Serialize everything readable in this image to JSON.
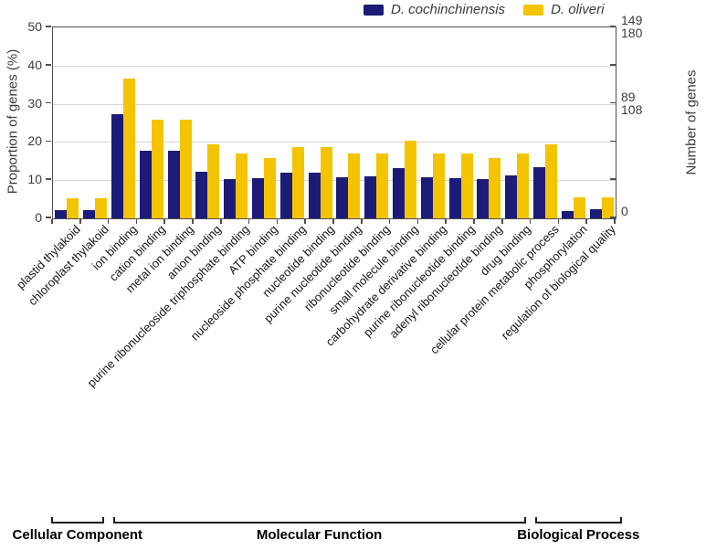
{
  "accent_colors": {
    "series1": "#1c1c78",
    "series2": "#f4c400",
    "axis": "#4f4f4f",
    "grid": "#d7d7d7"
  },
  "chart_data": {
    "type": "bar",
    "title": "",
    "ylabel_left": "Proportion of genes (%)",
    "ylabel_right": "Number of genes",
    "ylim": [
      0,
      50
    ],
    "left_ticks": [
      0,
      10,
      20,
      30,
      40,
      50
    ],
    "grid": "horizontal",
    "legend_position": "top",
    "right_axis_labels": [
      {
        "text": "149",
        "at_percent": 50,
        "series": "D. cochinchinensis"
      },
      {
        "text": "180",
        "at_percent": 50,
        "series": "D. oliveri"
      },
      {
        "text": "89",
        "at_percent": 30,
        "series": "D. cochinchinensis"
      },
      {
        "text": "108",
        "at_percent": 30,
        "series": "D. oliveri"
      },
      {
        "text": "0",
        "at_percent": 0
      }
    ],
    "categories": [
      "plastid thylakoid",
      "chloroplast thylakoid",
      "ion binding",
      "cation binding",
      "metal ion binding",
      "anion binding",
      "purine ribonucleoside triphosphate binding",
      "ATP binding",
      "nucleoside phosphate binding",
      "nucleotide binding",
      "purine nucleotide binding",
      "ribonucleotide binding",
      "small molecule binding",
      "carbohydrate derivative binding",
      "purine ribonucleotide binding",
      "adenyl ribonucleotide binding",
      "drug binding",
      "cellular protein metabolic process",
      "phosphorylation",
      "regulation of biological quality"
    ],
    "groups": [
      {
        "label": "Cellular Component",
        "start": 0,
        "end": 1
      },
      {
        "label": "Molecular Function",
        "start": 2,
        "end": 16
      },
      {
        "label": "Biological Process",
        "start": 17,
        "end": 19
      }
    ],
    "series": [
      {
        "name": "D. cochinchinensis",
        "color": "#1c1c78",
        "values": [
          2.2,
          2.2,
          27.3,
          17.6,
          17.6,
          12.2,
          10.4,
          10.5,
          11.9,
          11.9,
          10.8,
          10.9,
          13.1,
          10.8,
          10.5,
          10.4,
          11.2,
          13.3,
          1.8,
          2.4
        ]
      },
      {
        "name": "D. oliveri",
        "color": "#f4c400",
        "values": [
          5.3,
          5.3,
          36.5,
          25.8,
          25.8,
          19.3,
          17.0,
          15.8,
          18.6,
          18.6,
          17.0,
          17.1,
          20.3,
          17.1,
          17.1,
          15.9,
          16.9,
          19.5,
          5.5,
          5.5
        ]
      }
    ]
  }
}
